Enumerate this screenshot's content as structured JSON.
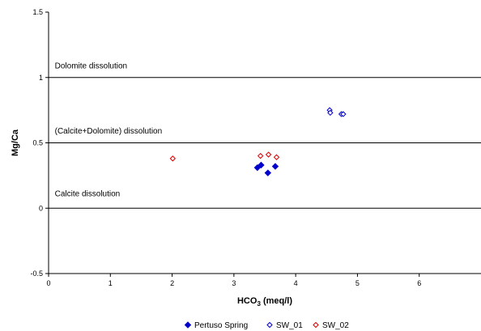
{
  "chart_data": {
    "type": "scatter",
    "xlabel_main": "HCO",
    "xlabel_sub": "3",
    "xlabel_unit": " (meq/l)",
    "ylabel": "Mg/Ca",
    "xlim": [
      0,
      7
    ],
    "ylim": [
      -0.5,
      1.5
    ],
    "x_ticks": [
      0,
      1,
      2,
      3,
      4,
      5,
      6
    ],
    "y_ticks": [
      -0.5,
      0,
      0.5,
      1,
      1.5
    ],
    "y_tick_labels": [
      "-0.5",
      "0",
      "0.5",
      "1",
      "1.5"
    ],
    "hlines": [
      0,
      0.5,
      1
    ],
    "grid": false,
    "legend_position": "bottom",
    "annotations": [
      {
        "text": "Dolomite dissolution",
        "x": 0.1,
        "y": 1.07
      },
      {
        "text": "(Calcite+Dolomite) dissolution",
        "x": 0.1,
        "y": 0.57
      },
      {
        "text": "Calcite dissolution",
        "x": 0.1,
        "y": 0.09
      }
    ],
    "series": [
      {
        "name": "Pertuso Spring",
        "marker": "filled-diamond",
        "color": "#0000cc",
        "x": [
          3.38,
          3.44,
          3.55,
          3.67
        ],
        "y": [
          0.31,
          0.33,
          0.27,
          0.32
        ]
      },
      {
        "name": "SW_01",
        "marker": "open-diamond",
        "color": "#0000cc",
        "x": [
          4.55,
          4.56,
          4.74,
          4.77
        ],
        "y": [
          0.75,
          0.73,
          0.72,
          0.72
        ]
      },
      {
        "name": "SW_02",
        "marker": "open-diamond",
        "color": "#dd0000",
        "x": [
          2.01,
          3.43,
          3.56,
          3.69
        ],
        "y": [
          0.38,
          0.4,
          0.41,
          0.39
        ]
      }
    ]
  }
}
